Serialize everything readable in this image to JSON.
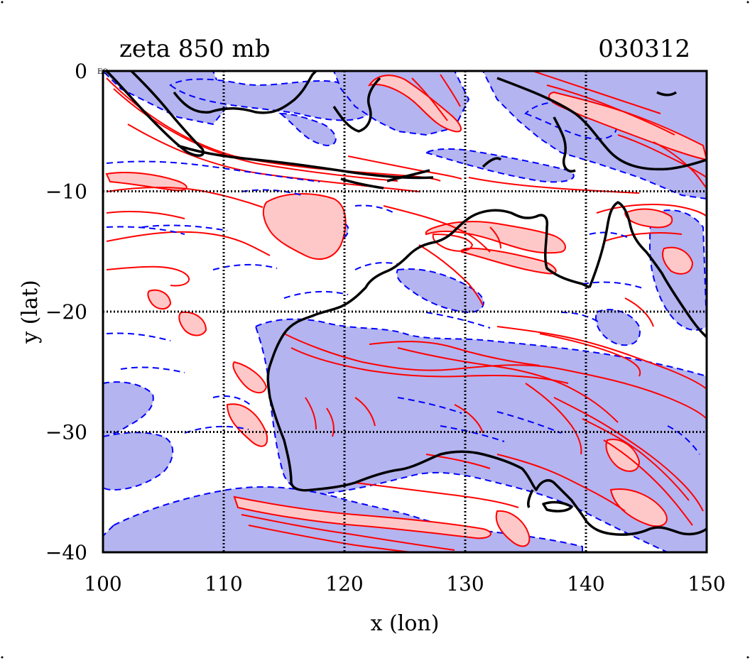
{
  "title": "zeta 850 mb",
  "date_code": "030312",
  "corner_marker": "EQ",
  "chart_data": {
    "type": "contour",
    "xlabel": "x (lon)",
    "ylabel": "y (lat)",
    "xlim": [
      100,
      150
    ],
    "ylim": [
      -40,
      0
    ],
    "x_ticks": [
      100,
      110,
      120,
      130,
      140,
      150
    ],
    "y_ticks": [
      -40,
      -30,
      -20,
      -10,
      0
    ],
    "x_tick_labels": [
      "100",
      "110",
      "120",
      "130",
      "140",
      "150"
    ],
    "y_tick_labels": [
      "−40",
      "−30",
      "−20",
      "−10",
      "0"
    ],
    "grid": true,
    "colors": {
      "positive_contour": "#ff0000",
      "positive_fill": "#ffc8c8",
      "negative_contour": "#0000ff",
      "negative_fill": "#b4b4f0",
      "coastline": "#000000"
    }
  }
}
